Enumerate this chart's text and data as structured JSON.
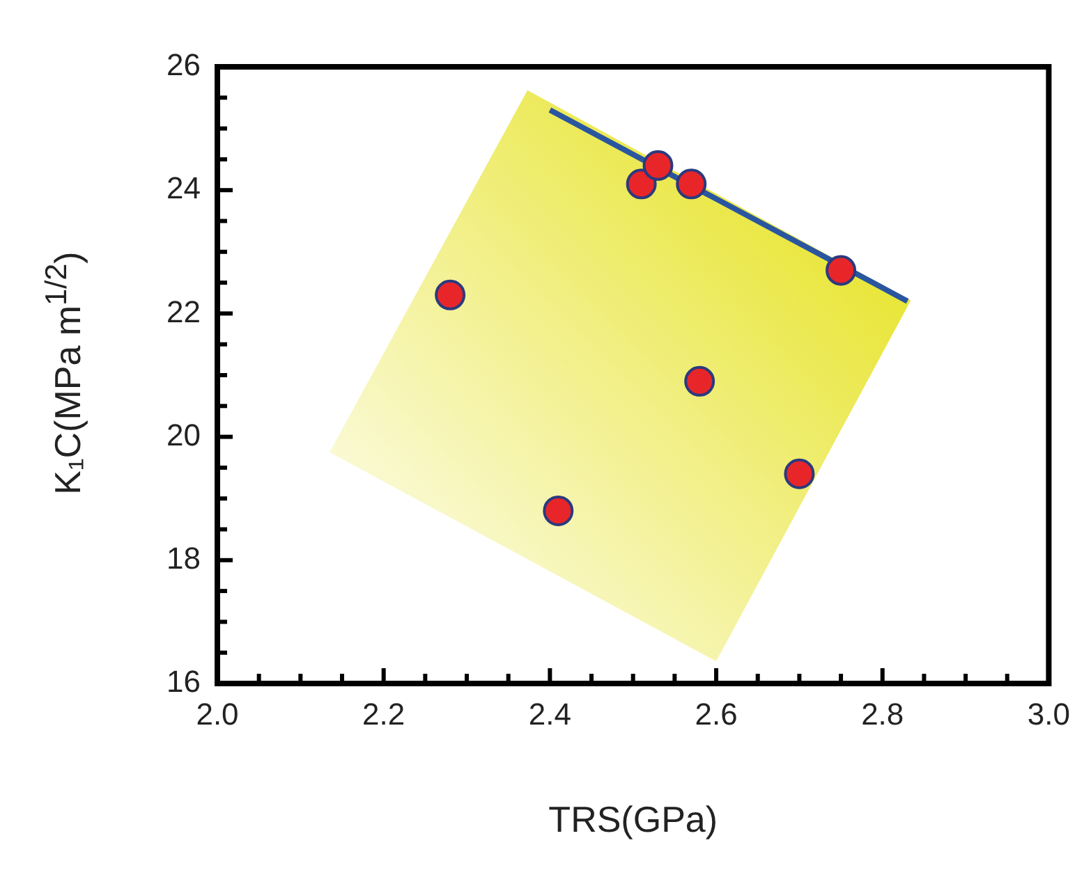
{
  "chart_data": {
    "type": "scatter",
    "xlabel": "TRS(GPa)",
    "ylabel": "K₁C(MPa m$^{1/2}$)",
    "series": [
      {
        "type": "area",
        "marker": "none",
        "color": "#e9e63c",
        "x": [
          2.373,
          2.834,
          2.6,
          2.135,
          2.373
        ],
        "values": [
          25.62,
          22.21,
          16.36,
          19.75,
          25.62
        ]
      },
      {
        "type": "scatter",
        "marker": "circle",
        "color": "#e8262a",
        "x": [
          2.28,
          2.41,
          2.51,
          2.53,
          2.57,
          2.58,
          2.7,
          2.75
        ],
        "values": [
          22.3,
          18.8,
          24.1,
          24.4,
          24.1,
          20.9,
          19.4,
          22.7
        ]
      },
      {
        "type": "line",
        "marker": "none",
        "color": "#2a56a0",
        "x": [
          2.4,
          2.83
        ],
        "values": [
          25.3,
          22.2
        ]
      }
    ],
    "xlim": [
      2.0,
      3.0
    ],
    "ylim": [
      16,
      26
    ],
    "xticks": [
      {
        "value": 2.0,
        "label": "2.0"
      },
      {
        "value": 2.05,
        "label": null
      },
      {
        "value": 2.1,
        "label": null
      },
      {
        "value": 2.15,
        "label": null
      },
      2.2,
      {
        "value": 2.25,
        "label": null
      },
      {
        "value": 2.3,
        "label": null
      },
      {
        "value": 2.35,
        "label": null
      },
      2.4,
      {
        "value": 2.45,
        "label": null
      },
      {
        "value": 2.5,
        "label": null
      },
      {
        "value": 2.55,
        "label": null
      },
      2.6,
      {
        "value": 2.65,
        "label": null
      },
      {
        "value": 2.7,
        "label": null
      },
      {
        "value": 2.75,
        "label": null
      },
      2.8,
      {
        "value": 2.85,
        "label": null
      },
      {
        "value": 2.9,
        "label": null
      },
      {
        "value": 2.95,
        "label": null
      },
      {
        "value": 3.0,
        "label": "3.0"
      }
    ],
    "yticks": [
      16,
      {
        "value": 16.5,
        "label": null
      },
      {
        "value": 17,
        "label": null
      },
      {
        "value": 17.5,
        "label": null
      },
      18,
      {
        "value": 18.5,
        "label": null
      },
      {
        "value": 19,
        "label": null
      },
      {
        "value": 19.5,
        "label": null
      },
      20,
      {
        "value": 20.5,
        "label": null
      },
      {
        "value": 21,
        "label": null
      },
      {
        "value": 21.5,
        "label": null
      },
      22,
      {
        "value": 22.5,
        "label": null
      },
      {
        "value": 23,
        "label": null
      },
      {
        "value": 23.5,
        "label": null
      },
      24,
      {
        "value": 24.5,
        "label": null
      },
      {
        "value": 25,
        "label": null
      },
      {
        "value": 25.5,
        "label": null
      },
      26
    ],
    "grid": false,
    "legend": false
  }
}
